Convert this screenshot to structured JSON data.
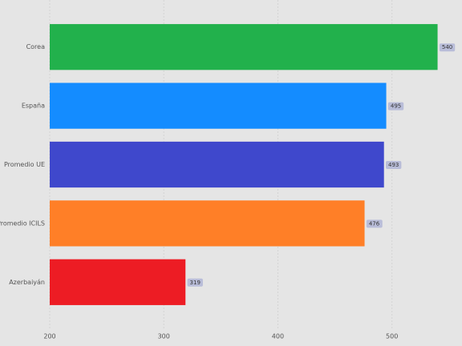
{
  "chart_data": {
    "type": "barh",
    "categories": [
      "Corea",
      "España",
      "Promedio UE",
      "Promedio ICILS",
      "Azerbaiyán"
    ],
    "values": [
      540,
      495,
      493,
      476,
      319
    ],
    "colors": [
      "#22b14c",
      "#148cff",
      "#3f48cc",
      "#ff7f27",
      "#ed1c24"
    ],
    "xlim": [
      200,
      560
    ],
    "xticks": [
      200,
      300,
      400,
      500
    ],
    "grid": true
  }
}
